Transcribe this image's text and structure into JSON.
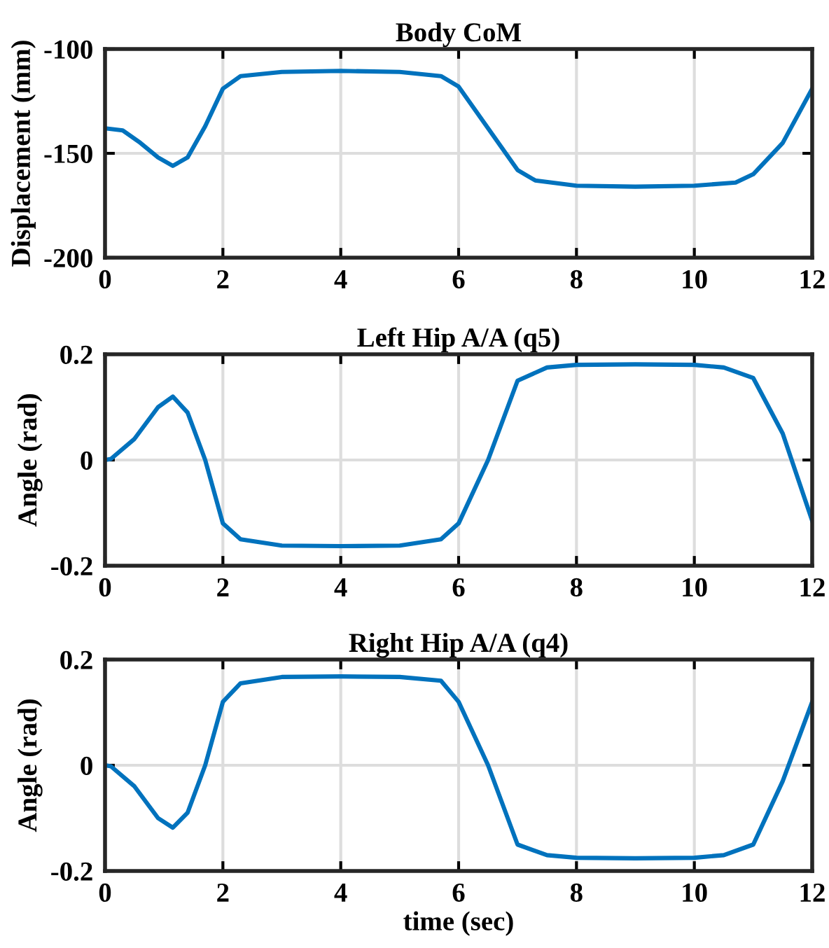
{
  "chart_data": [
    {
      "type": "line",
      "title": "Body CoM",
      "ylabel": "Displacement (mm)",
      "xlim": [
        0,
        12
      ],
      "ylim": [
        -200,
        -100
      ],
      "xticks": [
        0,
        2,
        4,
        6,
        8,
        10,
        12
      ],
      "yticks": [
        -200,
        -150,
        -100
      ],
      "grid": true,
      "marker": "none",
      "line_style": "solid",
      "series": [
        {
          "color": "#0072bd",
          "x": [
            0,
            0.3,
            0.6,
            0.9,
            1.15,
            1.4,
            1.7,
            2,
            2.3,
            3,
            4,
            5,
            5.7,
            6,
            6.5,
            7,
            7.3,
            8,
            9,
            10,
            10.7,
            11,
            11.5,
            12
          ],
          "values": [
            -138,
            -139,
            -145,
            -152,
            -156,
            -152,
            -137,
            -119,
            -113,
            -111,
            -110.5,
            -111,
            -113,
            -118,
            -138,
            -158,
            -163,
            -165.5,
            -166,
            -165.5,
            -164,
            -160,
            -145,
            -119
          ]
        }
      ]
    },
    {
      "type": "line",
      "title": "Left Hip A/A (q5)",
      "ylabel": "Angle (rad)",
      "xlim": [
        0,
        12
      ],
      "ylim": [
        -0.2,
        0.2
      ],
      "xticks": [
        0,
        2,
        4,
        6,
        8,
        10,
        12
      ],
      "yticks": [
        -0.2,
        0,
        0.2
      ],
      "grid": true,
      "marker": "none",
      "line_style": "solid",
      "series": [
        {
          "color": "#0072bd",
          "x": [
            0,
            0.1,
            0.5,
            0.9,
            1.15,
            1.4,
            1.7,
            2,
            2.3,
            3,
            4,
            5,
            5.7,
            6,
            6.5,
            7,
            7.5,
            8,
            9,
            10,
            10.5,
            11,
            11.5,
            12
          ],
          "values": [
            0,
            0.002,
            0.04,
            0.1,
            0.12,
            0.09,
            0.0,
            -0.12,
            -0.15,
            -0.162,
            -0.163,
            -0.162,
            -0.15,
            -0.12,
            0.0,
            0.15,
            0.175,
            0.18,
            0.181,
            0.18,
            0.175,
            0.155,
            0.05,
            -0.115
          ]
        }
      ]
    },
    {
      "type": "line",
      "title": "Right Hip A/A (q4)",
      "ylabel": "Angle (rad)",
      "xlabel": "time (sec)",
      "xlim": [
        0,
        12
      ],
      "ylim": [
        -0.2,
        0.2
      ],
      "xticks": [
        0,
        2,
        4,
        6,
        8,
        10,
        12
      ],
      "yticks": [
        -0.2,
        0,
        0.2
      ],
      "grid": true,
      "marker": "none",
      "line_style": "solid",
      "series": [
        {
          "color": "#0072bd",
          "x": [
            0,
            0.1,
            0.5,
            0.9,
            1.15,
            1.4,
            1.7,
            2,
            2.3,
            3,
            4,
            5,
            5.7,
            6,
            6.5,
            7,
            7.5,
            8,
            9,
            10,
            10.5,
            11,
            11.5,
            12
          ],
          "values": [
            0,
            -0.002,
            -0.04,
            -0.1,
            -0.118,
            -0.09,
            0.0,
            0.12,
            0.155,
            0.167,
            0.168,
            0.167,
            0.16,
            0.12,
            0.0,
            -0.15,
            -0.17,
            -0.175,
            -0.176,
            -0.175,
            -0.17,
            -0.15,
            -0.03,
            0.12
          ]
        }
      ]
    }
  ]
}
